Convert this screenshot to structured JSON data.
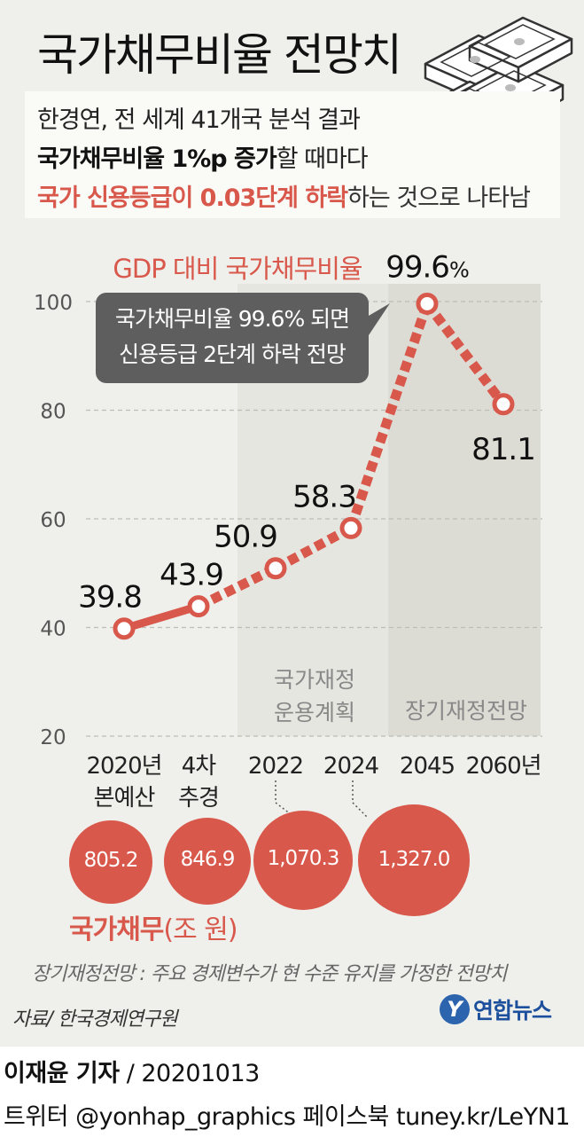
{
  "header": {
    "title": "국가채무비율 전망치",
    "summary_line1": "한경연, 전 세계 41개국 분석 결과",
    "summary_line2_bold": "국가채무비율 1%p 증가",
    "summary_line2_rest": "할 때마다",
    "summary_line3_red": "국가 신용등급이 0.03단계 하락",
    "summary_line3_rest": "하는 것으로 나타남"
  },
  "chart_data": {
    "type": "line",
    "title": "GDP 대비 국가채무비율",
    "categories": [
      "2020년\n본예산",
      "4차\n추경",
      "2022",
      "2024",
      "2045",
      "2060년"
    ],
    "series": [
      {
        "values": [
          39.8,
          43.9,
          50.9,
          58.3,
          99.6,
          81.1
        ]
      }
    ],
    "value_labels": [
      "39.8",
      "43.9",
      "50.9",
      "58.3",
      "99.6",
      "81.1"
    ],
    "peak_unit": "%",
    "y_ticks": [
      "20",
      "40",
      "60",
      "80",
      "100"
    ],
    "ylim": [
      20,
      100
    ],
    "grid": true,
    "callout_line1": "국가채무비율 99.6% 되면",
    "callout_line2": "신용등급 2단계 하락 전망",
    "band_labels": {
      "fiscal_plan_line1": "국가재정",
      "fiscal_plan_line2": "운용계획",
      "long_term": "장기재정전망"
    },
    "colors": {
      "line": "#d9584c",
      "point_fill": "#ffffff",
      "callout_bg": "#5e5e5e"
    }
  },
  "debt": {
    "label_main": "국가채무",
    "label_unit": "(조 원)",
    "values": [
      "805.2",
      "846.9",
      "1,070.3",
      "1,327.0"
    ],
    "color": "#d9584c"
  },
  "footnote": "장기재정전망 : 주요 경제변수가 현 수준 유지를 가정한 전망치",
  "source": "자료/ 한국경제연구원",
  "logo": {
    "mark": "Y",
    "text": "연합뉴스"
  },
  "credit": {
    "reporter_name": "이재윤 기자",
    "reporter_rest": " / 20201013",
    "social": "트위터 @yonhap_graphics  페이스북 tuney.kr/LeYN1"
  }
}
